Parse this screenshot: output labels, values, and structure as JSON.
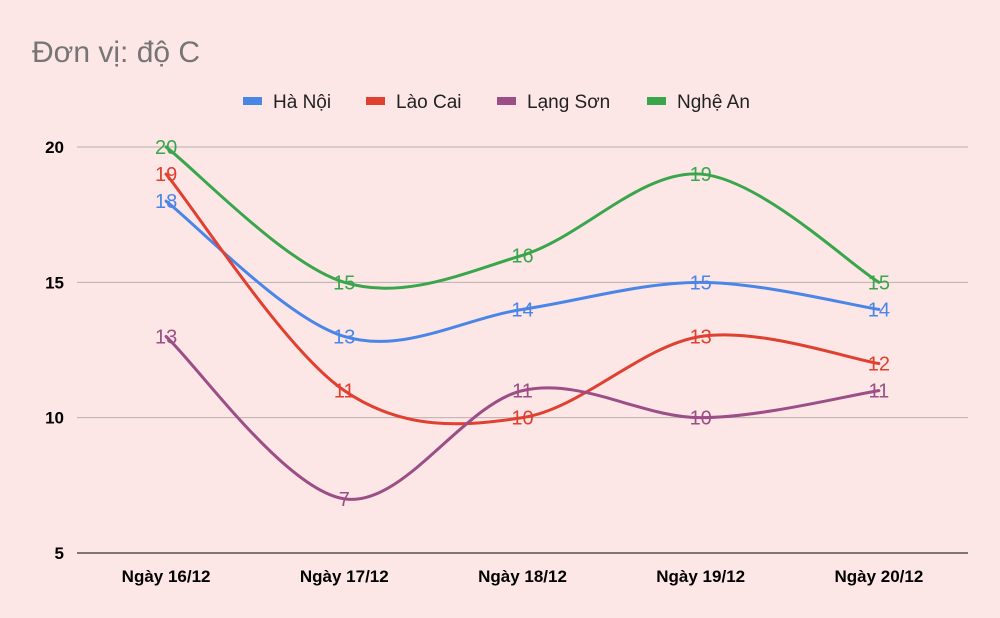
{
  "chart_data": {
    "type": "line",
    "title": "Đơn vị: độ C",
    "categories": [
      "Ngày 16/12",
      "Ngày 17/12",
      "Ngày 18/12",
      "Ngày 19/12",
      "Ngày 20/12"
    ],
    "ylim": [
      5,
      20
    ],
    "yticks": [
      5,
      10,
      15,
      20
    ],
    "grid": true,
    "legend_position": "top",
    "smooth": true,
    "series": [
      {
        "name": "Hà Nội",
        "color": "#4a86e8",
        "values": [
          18,
          13,
          14,
          15,
          14
        ]
      },
      {
        "name": "Lào Cai",
        "color": "#e0402f",
        "values": [
          19,
          11,
          10,
          13,
          12
        ]
      },
      {
        "name": "Lạng Sơn",
        "color": "#9b4f86",
        "values": [
          13,
          7,
          11,
          10,
          11
        ]
      },
      {
        "name": "Nghệ An",
        "color": "#3aa64c",
        "values": [
          20,
          15,
          16,
          19,
          15
        ]
      }
    ]
  }
}
